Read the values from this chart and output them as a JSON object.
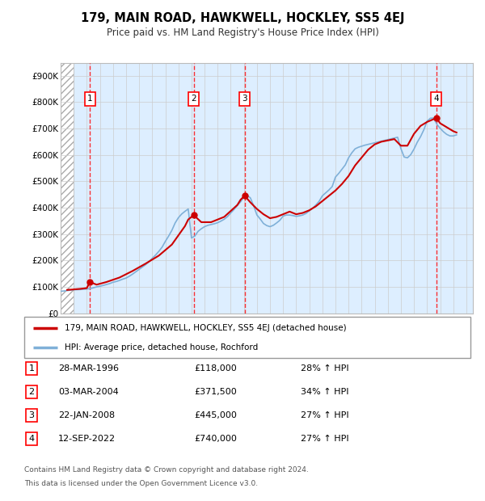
{
  "title": "179, MAIN ROAD, HAWKWELL, HOCKLEY, SS5 4EJ",
  "subtitle": "Price paid vs. HM Land Registry's House Price Index (HPI)",
  "legend_line1": "179, MAIN ROAD, HAWKWELL, HOCKLEY, SS5 4EJ (detached house)",
  "legend_line2": "HPI: Average price, detached house, Rochford",
  "footer1": "Contains HM Land Registry data © Crown copyright and database right 2024.",
  "footer2": "This data is licensed under the Open Government Licence v3.0.",
  "xlim": [
    1994,
    2025.5
  ],
  "ylim": [
    0,
    950000
  ],
  "yticks": [
    0,
    100000,
    200000,
    300000,
    400000,
    500000,
    600000,
    700000,
    800000,
    900000
  ],
  "ytick_labels": [
    "£0",
    "£100K",
    "£200K",
    "£300K",
    "£400K",
    "£500K",
    "£600K",
    "£700K",
    "£800K",
    "£900K"
  ],
  "xticks": [
    1994,
    1995,
    1996,
    1997,
    1998,
    1999,
    2000,
    2001,
    2002,
    2003,
    2004,
    2005,
    2006,
    2007,
    2008,
    2009,
    2010,
    2011,
    2012,
    2013,
    2014,
    2015,
    2016,
    2017,
    2018,
    2019,
    2020,
    2021,
    2022,
    2023,
    2024,
    2025
  ],
  "sale_dates": [
    1996.24,
    2004.17,
    2008.06,
    2022.71
  ],
  "sale_prices": [
    118000,
    371500,
    445000,
    740000
  ],
  "sale_labels": [
    "1",
    "2",
    "3",
    "4"
  ],
  "red_line_color": "#cc0000",
  "blue_line_color": "#7fb0d8",
  "background_color": "#ddeeff",
  "hatch_color": "#aaaaaa",
  "grid_color": "#cccccc",
  "table_rows": [
    [
      "1",
      "28-MAR-1996",
      "£118,000",
      "28% ↑ HPI"
    ],
    [
      "2",
      "03-MAR-2004",
      "£371,500",
      "34% ↑ HPI"
    ],
    [
      "3",
      "22-JAN-2008",
      "£445,000",
      "27% ↑ HPI"
    ],
    [
      "4",
      "12-SEP-2022",
      "£740,000",
      "27% ↑ HPI"
    ]
  ],
  "hpi_x": [
    1994.0,
    1994.25,
    1994.5,
    1994.75,
    1995.0,
    1995.25,
    1995.5,
    1995.75,
    1996.0,
    1996.25,
    1996.5,
    1996.75,
    1997.0,
    1997.25,
    1997.5,
    1997.75,
    1998.0,
    1998.25,
    1998.5,
    1998.75,
    1999.0,
    1999.25,
    1999.5,
    1999.75,
    2000.0,
    2000.25,
    2000.5,
    2000.75,
    2001.0,
    2001.25,
    2001.5,
    2001.75,
    2002.0,
    2002.25,
    2002.5,
    2002.75,
    2003.0,
    2003.25,
    2003.5,
    2003.75,
    2004.0,
    2004.25,
    2004.5,
    2004.75,
    2005.0,
    2005.25,
    2005.5,
    2005.75,
    2006.0,
    2006.25,
    2006.5,
    2006.75,
    2007.0,
    2007.25,
    2007.5,
    2007.75,
    2008.0,
    2008.25,
    2008.5,
    2008.75,
    2009.0,
    2009.25,
    2009.5,
    2009.75,
    2010.0,
    2010.25,
    2010.5,
    2010.75,
    2011.0,
    2011.25,
    2011.5,
    2011.75,
    2012.0,
    2012.25,
    2012.5,
    2012.75,
    2013.0,
    2013.25,
    2013.5,
    2013.75,
    2014.0,
    2014.25,
    2014.5,
    2014.75,
    2015.0,
    2015.25,
    2015.5,
    2015.75,
    2016.0,
    2016.25,
    2016.5,
    2016.75,
    2017.0,
    2017.25,
    2017.5,
    2017.75,
    2018.0,
    2018.25,
    2018.5,
    2018.75,
    2019.0,
    2019.25,
    2019.5,
    2019.75,
    2020.0,
    2020.25,
    2020.5,
    2020.75,
    2021.0,
    2021.25,
    2021.5,
    2021.75,
    2022.0,
    2022.25,
    2022.5,
    2022.75,
    2023.0,
    2023.25,
    2023.5,
    2023.75,
    2024.0,
    2024.25
  ],
  "hpi_y": [
    83000,
    84000,
    85500,
    87000,
    88500,
    89000,
    89500,
    90500,
    91500,
    93000,
    96000,
    99500,
    102000,
    105000,
    108500,
    112000,
    117000,
    120000,
    124000,
    129000,
    133000,
    140000,
    148000,
    157000,
    166000,
    175000,
    184000,
    195000,
    208000,
    220000,
    234000,
    250000,
    272000,
    292000,
    314000,
    342000,
    362000,
    376000,
    386000,
    395000,
    285000,
    292000,
    310000,
    320000,
    328000,
    333000,
    336000,
    339000,
    343000,
    349000,
    356000,
    366000,
    380000,
    393000,
    408000,
    422000,
    440000,
    447000,
    437000,
    407000,
    372000,
    357000,
    340000,
    332000,
    328000,
    333000,
    342000,
    352000,
    368000,
    372000,
    372000,
    370000,
    367000,
    369000,
    372000,
    378000,
    388000,
    398000,
    410000,
    424000,
    445000,
    456000,
    467000,
    480000,
    516000,
    530000,
    546000,
    562000,
    589000,
    608000,
    623000,
    629000,
    633000,
    637000,
    640000,
    643000,
    646000,
    649000,
    652000,
    655000,
    658000,
    661000,
    664000,
    667000,
    624000,
    592000,
    589000,
    601000,
    622000,
    648000,
    669000,
    695000,
    728000,
    739000,
    740000,
    716000,
    701000,
    688000,
    678000,
    672000,
    672000,
    676000
  ],
  "red_line_x": [
    1994.5,
    1995.5,
    1996.0,
    1996.24,
    1996.75,
    1997.5,
    1998.5,
    1999.5,
    2000.5,
    2001.5,
    2002.5,
    2003.5,
    2003.75,
    2004.17,
    2004.75,
    2005.5,
    2006.5,
    2007.5,
    2007.75,
    2008.06,
    2008.5,
    2009.0,
    2009.5,
    2010.0,
    2010.5,
    2011.0,
    2011.5,
    2012.0,
    2012.5,
    2013.0,
    2013.5,
    2014.0,
    2014.5,
    2015.0,
    2015.5,
    2016.0,
    2016.5,
    2017.0,
    2017.5,
    2018.0,
    2018.5,
    2019.0,
    2019.5,
    2020.0,
    2020.5,
    2021.0,
    2021.5,
    2022.0,
    2022.71,
    2023.0,
    2023.5,
    2024.0,
    2024.25
  ],
  "red_line_y": [
    88000,
    92000,
    95000,
    118000,
    108000,
    118000,
    135000,
    160000,
    188000,
    218000,
    260000,
    330000,
    355000,
    371500,
    345000,
    345000,
    365000,
    410000,
    430000,
    445000,
    420000,
    395000,
    375000,
    360000,
    365000,
    375000,
    385000,
    375000,
    380000,
    390000,
    405000,
    425000,
    445000,
    465000,
    490000,
    520000,
    560000,
    590000,
    620000,
    640000,
    650000,
    655000,
    660000,
    635000,
    635000,
    680000,
    710000,
    725000,
    740000,
    720000,
    705000,
    690000,
    685000
  ]
}
